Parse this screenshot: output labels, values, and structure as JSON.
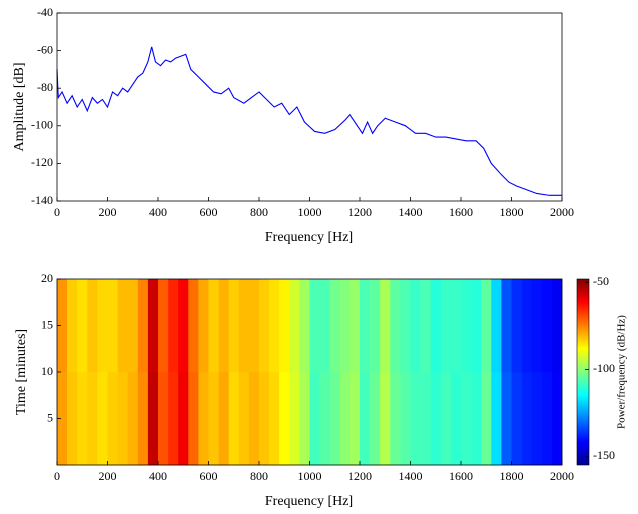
{
  "chart_data": [
    {
      "type": "line",
      "xlabel": "Frequency [Hz]",
      "ylabel": "Amplitude [dB]",
      "xlim": [
        0,
        2000
      ],
      "ylim": [
        -140,
        -40
      ],
      "xticks": [
        0,
        200,
        400,
        600,
        800,
        1000,
        1200,
        1400,
        1600,
        1800,
        2000
      ],
      "yticks": [
        -140,
        -120,
        -100,
        -80,
        -60,
        -40
      ],
      "series": [
        {
          "color": "#0000ff",
          "x": [
            0,
            5,
            20,
            40,
            60,
            80,
            100,
            120,
            140,
            160,
            180,
            200,
            220,
            240,
            260,
            280,
            300,
            320,
            340,
            360,
            375,
            390,
            410,
            430,
            450,
            470,
            490,
            510,
            530,
            560,
            590,
            620,
            650,
            680,
            700,
            740,
            780,
            800,
            830,
            860,
            890,
            920,
            950,
            980,
            1020,
            1060,
            1100,
            1140,
            1160,
            1190,
            1210,
            1230,
            1250,
            1270,
            1300,
            1340,
            1380,
            1420,
            1460,
            1500,
            1540,
            1580,
            1620,
            1660,
            1690,
            1720,
            1760,
            1790,
            1820,
            1860,
            1900,
            1950,
            2000
          ],
          "values": [
            -70,
            -85,
            -82,
            -88,
            -84,
            -90,
            -86,
            -92,
            -85,
            -88,
            -86,
            -90,
            -82,
            -84,
            -80,
            -82,
            -78,
            -74,
            -72,
            -66,
            -58,
            -66,
            -68,
            -65,
            -66,
            -64,
            -63,
            -62,
            -70,
            -74,
            -78,
            -82,
            -83,
            -80,
            -85,
            -88,
            -84,
            -82,
            -86,
            -90,
            -88,
            -94,
            -90,
            -98,
            -103,
            -104,
            -102,
            -97,
            -94,
            -100,
            -104,
            -98,
            -104,
            -100,
            -96,
            -98,
            -100,
            -104,
            -104,
            -106,
            -106,
            -107,
            -108,
            -108,
            -112,
            -120,
            -126,
            -130,
            -132,
            -134,
            -136,
            -137,
            -137
          ]
        }
      ]
    },
    {
      "type": "heatmap",
      "xlabel": "Frequency [Hz]",
      "ylabel": "Time [minutes]",
      "colorbar_label": "Power/frequency (dB/Hz)",
      "xlim": [
        0,
        2000
      ],
      "ylim": [
        0,
        20
      ],
      "xticks": [
        0,
        200,
        400,
        600,
        800,
        1000,
        1200,
        1400,
        1600,
        1800,
        2000
      ],
      "yticks": [
        5,
        10,
        15,
        20
      ],
      "clim": [
        -155,
        -48
      ],
      "cticks": [
        -150,
        -100,
        -50
      ],
      "colormap": "jet",
      "x": [
        0,
        40,
        80,
        120,
        160,
        200,
        240,
        280,
        320,
        360,
        400,
        440,
        480,
        520,
        560,
        600,
        640,
        680,
        720,
        760,
        800,
        840,
        880,
        920,
        960,
        1000,
        1040,
        1080,
        1120,
        1160,
        1200,
        1240,
        1280,
        1320,
        1360,
        1400,
        1440,
        1480,
        1520,
        1560,
        1600,
        1640,
        1680,
        1720,
        1760,
        1800,
        1840,
        1880,
        1920,
        1960,
        2000
      ],
      "y": [
        0,
        10,
        20
      ],
      "z": [
        [
          -78,
          -82,
          -84,
          -83,
          -85,
          -83,
          -82,
          -80,
          -76,
          -55,
          -70,
          -66,
          -60,
          -72,
          -80,
          -82,
          -79,
          -84,
          -82,
          -80,
          -82,
          -84,
          -88,
          -92,
          -97,
          -108,
          -106,
          -104,
          -100,
          -98,
          -108,
          -104,
          -96,
          -104,
          -106,
          -108,
          -108,
          -110,
          -108,
          -110,
          -109,
          -110,
          -104,
          -118,
          -132,
          -136,
          -138,
          -139,
          -140,
          -142
        ],
        [
          -77,
          -83,
          -85,
          -82,
          -84,
          -84,
          -81,
          -81,
          -75,
          -56,
          -71,
          -65,
          -61,
          -73,
          -79,
          -83,
          -80,
          -83,
          -81,
          -81,
          -83,
          -85,
          -87,
          -93,
          -98,
          -107,
          -107,
          -103,
          -101,
          -99,
          -107,
          -105,
          -97,
          -105,
          -107,
          -109,
          -107,
          -111,
          -109,
          -109,
          -110,
          -111,
          -105,
          -119,
          -133,
          -137,
          -139,
          -140,
          -141,
          -143
        ]
      ]
    }
  ]
}
